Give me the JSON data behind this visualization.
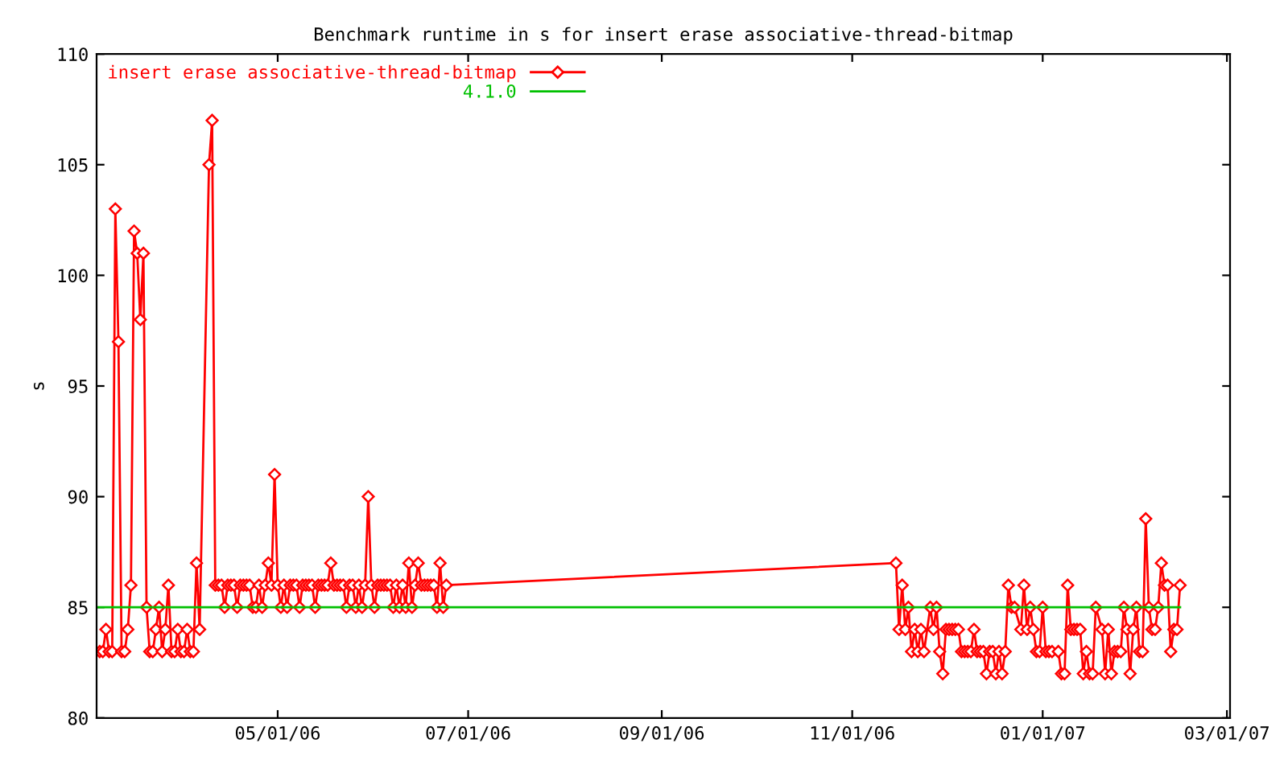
{
  "chart_data": {
    "type": "line",
    "title": "Benchmark runtime in s for insert erase associative-thread-bitmap",
    "ylabel": "s",
    "xlim": [
      "2006-03-04",
      "2007-03-02"
    ],
    "ylim": [
      80,
      110
    ],
    "yticks": [
      80,
      85,
      90,
      95,
      100,
      105,
      110
    ],
    "xticks": [
      {
        "value": "2006-05-01",
        "label": "05/01/06"
      },
      {
        "value": "2006-07-01",
        "label": "07/01/06"
      },
      {
        "value": "2006-09-01",
        "label": "09/01/06"
      },
      {
        "value": "2006-11-01",
        "label": "11/01/06"
      },
      {
        "value": "2007-01-01",
        "label": "01/01/07"
      },
      {
        "value": "2007-03-01",
        "label": "03/01/07"
      }
    ],
    "grid": false,
    "legend": "top left",
    "series": [
      {
        "name": "insert erase associative-thread-bitmap",
        "color": "#ff0000",
        "marker": "diamond",
        "line_style": "solid",
        "x": [
          "2006-03-05",
          "2006-03-06",
          "2006-03-07",
          "2006-03-08",
          "2006-03-09",
          "2006-03-10",
          "2006-03-11",
          "2006-03-12",
          "2006-03-13",
          "2006-03-14",
          "2006-03-15",
          "2006-03-16",
          "2006-03-17",
          "2006-03-18",
          "2006-03-19",
          "2006-03-20",
          "2006-03-21",
          "2006-03-22",
          "2006-03-23",
          "2006-03-24",
          "2006-03-25",
          "2006-03-26",
          "2006-03-27",
          "2006-03-28",
          "2006-03-29",
          "2006-03-30",
          "2006-03-31",
          "2006-04-01",
          "2006-04-02",
          "2006-04-03",
          "2006-04-04",
          "2006-04-05",
          "2006-04-06",
          "2006-04-09",
          "2006-04-10",
          "2006-04-11",
          "2006-04-12",
          "2006-04-13",
          "2006-04-14",
          "2006-04-15",
          "2006-04-16",
          "2006-04-17",
          "2006-04-18",
          "2006-04-19",
          "2006-04-20",
          "2006-04-21",
          "2006-04-22",
          "2006-04-23",
          "2006-04-24",
          "2006-04-25",
          "2006-04-26",
          "2006-04-27",
          "2006-04-28",
          "2006-04-29",
          "2006-04-30",
          "2006-05-01",
          "2006-05-02",
          "2006-05-03",
          "2006-05-04",
          "2006-05-05",
          "2006-05-06",
          "2006-05-07",
          "2006-05-08",
          "2006-05-09",
          "2006-05-10",
          "2006-05-11",
          "2006-05-12",
          "2006-05-13",
          "2006-05-14",
          "2006-05-15",
          "2006-05-16",
          "2006-05-17",
          "2006-05-18",
          "2006-05-19",
          "2006-05-20",
          "2006-05-21",
          "2006-05-22",
          "2006-05-23",
          "2006-05-24",
          "2006-05-25",
          "2006-05-26",
          "2006-05-27",
          "2006-05-28",
          "2006-05-29",
          "2006-05-30",
          "2006-05-31",
          "2006-06-01",
          "2006-06-02",
          "2006-06-03",
          "2006-06-04",
          "2006-06-05",
          "2006-06-06",
          "2006-06-07",
          "2006-06-08",
          "2006-06-09",
          "2006-06-10",
          "2006-06-11",
          "2006-06-12",
          "2006-06-13",
          "2006-06-14",
          "2006-06-15",
          "2006-06-16",
          "2006-06-17",
          "2006-06-18",
          "2006-06-19",
          "2006-06-20",
          "2006-06-21",
          "2006-06-22",
          "2006-06-23",
          "2006-06-24",
          "2006-11-15",
          "2006-11-16",
          "2006-11-17",
          "2006-11-18",
          "2006-11-19",
          "2006-11-20",
          "2006-11-21",
          "2006-11-22",
          "2006-11-23",
          "2006-11-24",
          "2006-11-26",
          "2006-11-27",
          "2006-11-28",
          "2006-11-29",
          "2006-11-30",
          "2006-12-01",
          "2006-12-02",
          "2006-12-03",
          "2006-12-04",
          "2006-12-05",
          "2006-12-06",
          "2006-12-07",
          "2006-12-08",
          "2006-12-09",
          "2006-12-10",
          "2006-12-11",
          "2006-12-12",
          "2006-12-13",
          "2006-12-14",
          "2006-12-15",
          "2006-12-16",
          "2006-12-17",
          "2006-12-18",
          "2006-12-19",
          "2006-12-20",
          "2006-12-21",
          "2006-12-22",
          "2006-12-23",
          "2006-12-25",
          "2006-12-26",
          "2006-12-27",
          "2006-12-28",
          "2006-12-29",
          "2006-12-30",
          "2006-12-31",
          "2007-01-01",
          "2007-01-02",
          "2007-01-03",
          "2007-01-04",
          "2007-01-06",
          "2007-01-07",
          "2007-01-08",
          "2007-01-09",
          "2007-01-10",
          "2007-01-11",
          "2007-01-12",
          "2007-01-13",
          "2007-01-14",
          "2007-01-15",
          "2007-01-16",
          "2007-01-17",
          "2007-01-18",
          "2007-01-20",
          "2007-01-21",
          "2007-01-22",
          "2007-01-23",
          "2007-01-24",
          "2007-01-25",
          "2007-01-26",
          "2007-01-27",
          "2007-01-28",
          "2007-01-29",
          "2007-01-30",
          "2007-01-31",
          "2007-02-01",
          "2007-02-02",
          "2007-02-03",
          "2007-02-04",
          "2007-02-05",
          "2007-02-06",
          "2007-02-07",
          "2007-02-08",
          "2007-02-09",
          "2007-02-10",
          "2007-02-11",
          "2007-02-12",
          "2007-02-13",
          "2007-02-14"
        ],
        "values": [
          83,
          83,
          84,
          83,
          83,
          103,
          97,
          83,
          83,
          84,
          86,
          102,
          101,
          98,
          101,
          85,
          83,
          83,
          84,
          85,
          83,
          84,
          86,
          83,
          83,
          84,
          83,
          83,
          84,
          83,
          83,
          87,
          84,
          105,
          107,
          86,
          86,
          86,
          85,
          86,
          86,
          86,
          85,
          86,
          86,
          86,
          86,
          85,
          85,
          86,
          85,
          86,
          87,
          86,
          91,
          86,
          85,
          86,
          85,
          86,
          86,
          86,
          85,
          86,
          86,
          86,
          86,
          85,
          86,
          86,
          86,
          86,
          87,
          86,
          86,
          86,
          86,
          85,
          86,
          86,
          85,
          86,
          85,
          86,
          90,
          86,
          85,
          86,
          86,
          86,
          86,
          86,
          85,
          86,
          85,
          86,
          85,
          87,
          85,
          86,
          87,
          86,
          86,
          86,
          86,
          86,
          85,
          87,
          85,
          86,
          87,
          84,
          86,
          84,
          85,
          83,
          84,
          83,
          84,
          83,
          85,
          84,
          85,
          83,
          82,
          84,
          84,
          84,
          84,
          84,
          83,
          83,
          83,
          83,
          84,
          83,
          83,
          83,
          82,
          83,
          83,
          82,
          83,
          82,
          83,
          86,
          85,
          85,
          84,
          86,
          84,
          85,
          84,
          83,
          83,
          85,
          83,
          83,
          83,
          83,
          82,
          82,
          86,
          84,
          84,
          84,
          84,
          82,
          83,
          82,
          82,
          85,
          84,
          82,
          84,
          82,
          83,
          83,
          83,
          85,
          84,
          82,
          84,
          85,
          83,
          83,
          89,
          85,
          84,
          84,
          85,
          87,
          86,
          86,
          83,
          84,
          84,
          86
        ]
      },
      {
        "name": "4.1.0",
        "color": "#00c000",
        "marker": "none",
        "line_style": "solid",
        "x": [
          "2006-03-04",
          "2007-02-14"
        ],
        "values": [
          85,
          85
        ]
      }
    ]
  }
}
